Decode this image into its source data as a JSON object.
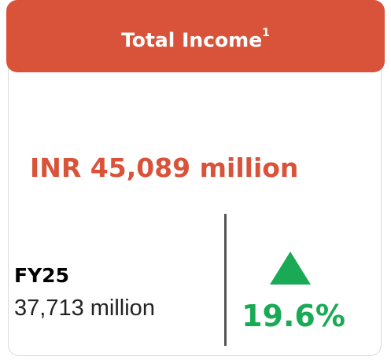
{
  "header": {
    "title": "Total Income",
    "footnote": "1"
  },
  "main_value": "INR 45,089 million",
  "comparison": {
    "label": "FY25",
    "value": "37,713 million"
  },
  "change": {
    "value": "19.6%"
  }
}
